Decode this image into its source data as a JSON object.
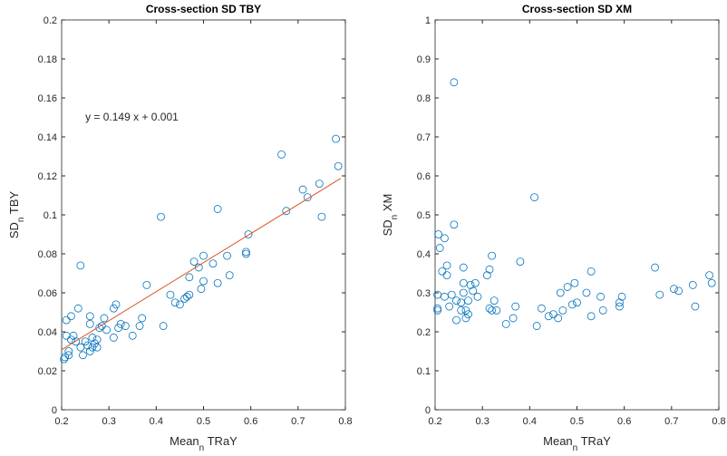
{
  "chart_data": [
    {
      "type": "scatter",
      "title": "Cross-section SD TBY",
      "xlabel": {
        "main": "Mean",
        "sub": "n",
        "rest": " TRaY"
      },
      "ylabel": {
        "main": "SD",
        "sub": "n",
        "rest": " TBY"
      },
      "annotation": "y = 0.149 x + 0.001",
      "color": "#0072bd",
      "fit_color": "#d95319",
      "fit_line": {
        "x": [
          0.2,
          0.79
        ],
        "y": [
          0.0308,
          0.1187
        ]
      },
      "xlim": [
        0.2,
        0.8
      ],
      "xticks": [
        0.2,
        0.3,
        0.4,
        0.5,
        0.6,
        0.7,
        0.8
      ],
      "ylim": [
        0,
        0.2
      ],
      "yticks": [
        0,
        0.02,
        0.04,
        0.06,
        0.08,
        0.1,
        0.12,
        0.14,
        0.16,
        0.18,
        0.2
      ],
      "x": [
        0.205,
        0.207,
        0.21,
        0.21,
        0.215,
        0.215,
        0.22,
        0.22,
        0.225,
        0.23,
        0.235,
        0.24,
        0.24,
        0.245,
        0.25,
        0.255,
        0.26,
        0.26,
        0.26,
        0.265,
        0.265,
        0.27,
        0.275,
        0.275,
        0.28,
        0.285,
        0.29,
        0.295,
        0.31,
        0.31,
        0.315,
        0.32,
        0.325,
        0.335,
        0.35,
        0.365,
        0.37,
        0.38,
        0.41,
        0.415,
        0.43,
        0.44,
        0.45,
        0.46,
        0.465,
        0.47,
        0.47,
        0.48,
        0.49,
        0.495,
        0.5,
        0.5,
        0.52,
        0.53,
        0.53,
        0.55,
        0.555,
        0.59,
        0.59,
        0.595,
        0.665,
        0.675,
        0.71,
        0.72,
        0.745,
        0.75,
        0.78,
        0.785
      ],
      "y": [
        0.026,
        0.027,
        0.038,
        0.046,
        0.028,
        0.03,
        0.036,
        0.048,
        0.038,
        0.035,
        0.052,
        0.074,
        0.032,
        0.028,
        0.035,
        0.033,
        0.03,
        0.044,
        0.048,
        0.037,
        0.032,
        0.034,
        0.032,
        0.036,
        0.042,
        0.043,
        0.047,
        0.041,
        0.052,
        0.037,
        0.054,
        0.042,
        0.044,
        0.043,
        0.038,
        0.043,
        0.047,
        0.064,
        0.099,
        0.043,
        0.059,
        0.055,
        0.054,
        0.057,
        0.058,
        0.059,
        0.068,
        0.076,
        0.073,
        0.062,
        0.079,
        0.066,
        0.075,
        0.103,
        0.065,
        0.079,
        0.069,
        0.081,
        0.08,
        0.09,
        0.131,
        0.102,
        0.113,
        0.109,
        0.116,
        0.099,
        0.139,
        0.125
      ]
    },
    {
      "type": "scatter",
      "title": "Cross-section SD XM",
      "xlabel": {
        "main": "Mean",
        "sub": "n",
        "rest": " TRaY"
      },
      "ylabel": {
        "main": "SD",
        "sub": "n",
        "rest": " XM"
      },
      "color": "#0072bd",
      "xlim": [
        0.2,
        0.8
      ],
      "xticks": [
        0.2,
        0.3,
        0.4,
        0.5,
        0.6,
        0.7,
        0.8
      ],
      "ylim": [
        0,
        1
      ],
      "yticks": [
        0,
        0.1,
        0.2,
        0.3,
        0.4,
        0.5,
        0.6,
        0.7,
        0.8,
        0.9,
        1
      ],
      "x": [
        0.205,
        0.205,
        0.205,
        0.207,
        0.21,
        0.215,
        0.22,
        0.22,
        0.225,
        0.225,
        0.23,
        0.235,
        0.24,
        0.24,
        0.245,
        0.245,
        0.255,
        0.255,
        0.26,
        0.26,
        0.26,
        0.265,
        0.265,
        0.27,
        0.27,
        0.275,
        0.28,
        0.285,
        0.29,
        0.31,
        0.315,
        0.315,
        0.32,
        0.32,
        0.325,
        0.33,
        0.35,
        0.365,
        0.37,
        0.38,
        0.41,
        0.415,
        0.425,
        0.44,
        0.45,
        0.46,
        0.465,
        0.47,
        0.48,
        0.49,
        0.495,
        0.5,
        0.52,
        0.53,
        0.53,
        0.55,
        0.555,
        0.59,
        0.59,
        0.595,
        0.665,
        0.675,
        0.705,
        0.715,
        0.745,
        0.75,
        0.78,
        0.785
      ],
      "y": [
        0.255,
        0.26,
        0.295,
        0.45,
        0.415,
        0.355,
        0.44,
        0.29,
        0.345,
        0.37,
        0.265,
        0.295,
        0.475,
        0.84,
        0.23,
        0.28,
        0.255,
        0.275,
        0.3,
        0.365,
        0.325,
        0.255,
        0.235,
        0.245,
        0.28,
        0.32,
        0.305,
        0.325,
        0.29,
        0.345,
        0.36,
        0.26,
        0.255,
        0.395,
        0.28,
        0.255,
        0.22,
        0.235,
        0.265,
        0.38,
        0.545,
        0.215,
        0.26,
        0.24,
        0.245,
        0.235,
        0.3,
        0.255,
        0.315,
        0.27,
        0.325,
        0.275,
        0.3,
        0.355,
        0.24,
        0.29,
        0.255,
        0.265,
        0.275,
        0.29,
        0.365,
        0.295,
        0.31,
        0.305,
        0.32,
        0.265,
        0.345,
        0.325
      ]
    }
  ]
}
